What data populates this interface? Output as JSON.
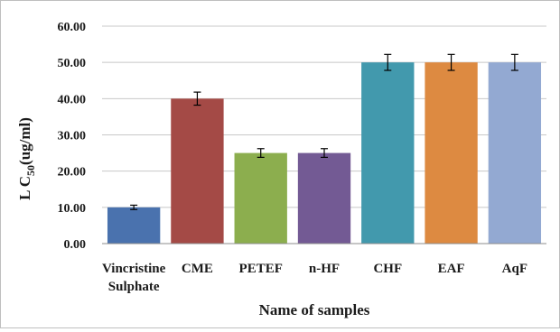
{
  "chart_data": {
    "type": "bar",
    "categories": [
      [
        "Vincristine",
        "Sulphate"
      ],
      [
        "CME"
      ],
      [
        "PETEF"
      ],
      [
        "n-HF"
      ],
      [
        "CHF"
      ],
      [
        "EAF"
      ],
      [
        "AqF"
      ]
    ],
    "values": [
      10,
      40,
      25,
      25,
      50,
      50,
      50
    ],
    "errors": [
      0.6,
      1.8,
      1.2,
      1.2,
      2.2,
      2.2,
      2.2
    ],
    "colors": [
      "#4a72ae",
      "#a44a46",
      "#8cae4e",
      "#735a94",
      "#4299ad",
      "#dd8a41",
      "#93a9d2"
    ],
    "ylim": [
      0,
      60
    ],
    "yticks": [
      "0.00",
      "10.00",
      "20.00",
      "30.00",
      "40.00",
      "50.00",
      "60.00"
    ],
    "ylabel_parts": [
      "L C",
      "50",
      "(ug/ml)"
    ],
    "xlabel": "Name of samples",
    "grid": true,
    "legend": "none"
  }
}
